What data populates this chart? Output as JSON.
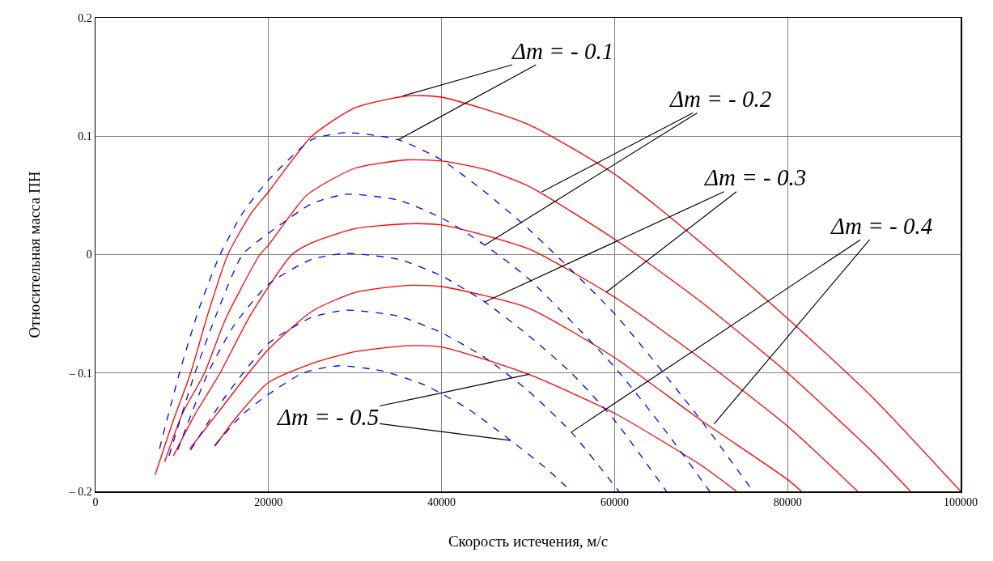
{
  "chart_data": {
    "type": "line",
    "xlabel": "Скорость истечения, м/с",
    "ylabel": "Относительная масса ПН",
    "xlim": [
      0,
      100000
    ],
    "xticks": [
      0,
      20000,
      40000,
      60000,
      80000,
      100000
    ],
    "ylim": [
      -0.2,
      0.2
    ],
    "yticks": [
      {
        "value": -0.2,
        "label": "– 0.2"
      },
      {
        "value": -0.1,
        "label": "– 0.1"
      },
      0,
      0.1,
      0.2
    ],
    "grid": true,
    "marker": "none",
    "line_style": "solid",
    "series": [
      {
        "color": "#ff0000",
        "x": [
          6900,
          9000,
          11000,
          13000,
          15300,
          18000,
          20000,
          25000,
          30000,
          36000,
          40000,
          50000,
          60000,
          70000,
          80000,
          90000,
          100000
        ],
        "values": [
          -0.186,
          -0.14,
          -0.1,
          -0.05,
          0,
          0.035,
          0.053,
          0.1,
          0.124,
          0.134,
          0.133,
          0.11,
          0.068,
          0.01,
          -0.054,
          -0.122,
          -0.2
        ]
      },
      {
        "color": "#ff0000",
        "x": [
          8000,
          10000,
          12600,
          15000,
          19000,
          20000,
          24400,
          30000,
          36000,
          40000,
          45000,
          50000,
          60000,
          70000,
          80000,
          90000,
          94200
        ],
        "values": [
          -0.175,
          -0.135,
          -0.1,
          -0.055,
          0,
          0.008,
          0.05,
          0.073,
          0.08,
          0.079,
          0.072,
          0.058,
          0.013,
          -0.04,
          -0.1,
          -0.168,
          -0.2
        ]
      },
      {
        "color": "#ff0000",
        "x": [
          9000,
          11500,
          14400,
          18000,
          22700,
          25000,
          30000,
          36000,
          40000,
          50000,
          60000,
          70000,
          80000,
          88100
        ],
        "values": [
          -0.17,
          -0.135,
          -0.1,
          -0.05,
          0,
          0.01,
          0.022,
          0.026,
          0.025,
          0.005,
          -0.036,
          -0.088,
          -0.145,
          -0.2
        ]
      },
      {
        "color": "#ff0000",
        "x": [
          10900,
          14000,
          17700,
          20000,
          25000,
          30000,
          36000,
          40000,
          50000,
          60000,
          70000,
          80000,
          81600
        ],
        "values": [
          -0.164,
          -0.135,
          -0.1,
          -0.08,
          -0.048,
          -0.032,
          -0.026,
          -0.027,
          -0.045,
          -0.087,
          -0.14,
          -0.19,
          -0.2
        ]
      },
      {
        "color": "#ff0000",
        "x": [
          13800,
          16000,
          20000,
          25000,
          30000,
          36000,
          40000,
          50000,
          60000,
          70000,
          74100
        ],
        "values": [
          -0.162,
          -0.14,
          -0.108,
          -0.092,
          -0.082,
          -0.077,
          -0.078,
          -0.101,
          -0.134,
          -0.178,
          -0.2
        ]
      },
      {
        "color": "#0000ff",
        "line_style": "dashed",
        "x": [
          7400,
          9700,
          12000,
          14400,
          17000,
          20000,
          25000,
          29000,
          35000,
          40000,
          45000,
          50000,
          60000,
          70000,
          76000
        ],
        "values": [
          -0.164,
          -0.1,
          -0.045,
          0,
          0.035,
          0.063,
          0.097,
          0.103,
          0.097,
          0.08,
          0.053,
          0.022,
          -0.05,
          -0.14,
          -0.2
        ]
      },
      {
        "color": "#0000ff",
        "line_style": "dashed",
        "x": [
          8500,
          11500,
          14000,
          17000,
          20000,
          25000,
          29000,
          35000,
          40000,
          45000,
          50000,
          60000,
          66000,
          71000
        ],
        "values": [
          -0.17,
          -0.1,
          -0.05,
          0,
          0.018,
          0.043,
          0.051,
          0.046,
          0.031,
          0.008,
          -0.02,
          -0.095,
          -0.15,
          -0.2
        ]
      },
      {
        "color": "#0000ff",
        "line_style": "dashed",
        "x": [
          9500,
          13000,
          16000,
          20000,
          25000,
          29000,
          35000,
          40000,
          45000,
          50000,
          55000,
          60000,
          66000
        ],
        "values": [
          -0.165,
          -0.1,
          -0.06,
          -0.025,
          -0.004,
          0.001,
          -0.004,
          -0.018,
          -0.04,
          -0.068,
          -0.1,
          -0.14,
          -0.2
        ]
      },
      {
        "color": "#0000ff",
        "line_style": "dashed",
        "x": [
          11000,
          15000,
          20000,
          25000,
          29000,
          35000,
          40000,
          45000,
          50000,
          55000,
          60500
        ],
        "values": [
          -0.165,
          -0.12,
          -0.075,
          -0.053,
          -0.047,
          -0.052,
          -0.066,
          -0.087,
          -0.115,
          -0.15,
          -0.2
        ]
      },
      {
        "color": "#0000ff",
        "line_style": "dashed",
        "x": [
          13800,
          17000,
          20000,
          24000,
          28000,
          33000,
          38000,
          43000,
          48000,
          52000,
          55000
        ],
        "values": [
          -0.161,
          -0.135,
          -0.118,
          -0.1,
          -0.094,
          -0.098,
          -0.11,
          -0.13,
          -0.157,
          -0.18,
          -0.2
        ]
      }
    ],
    "annotations": [
      {
        "text": "Δm = - 0.1",
        "x": 35500,
        "y": 0.134
      },
      {
        "text": "Δm = - 0.2",
        "x": 51600,
        "y": 0.053
      },
      {
        "text": "Δm = - 0.3",
        "x": 59000,
        "y": -0.032
      },
      {
        "text": "Δm = - 0.4",
        "x": 71500,
        "y": -0.143
      },
      {
        "text": "Δm = - 0.5",
        "x": 50200,
        "y": -0.101
      }
    ]
  }
}
